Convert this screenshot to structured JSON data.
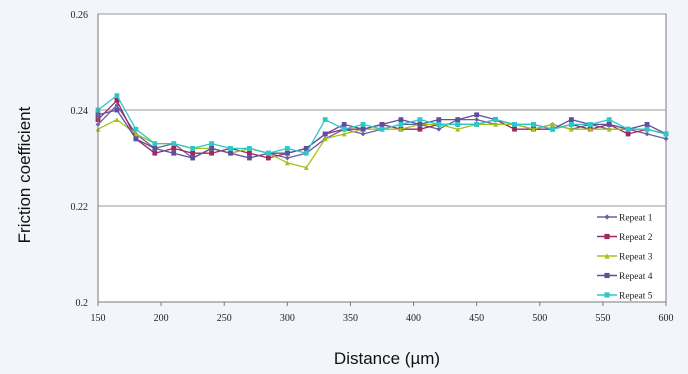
{
  "colors": {
    "page_background": "#f2f5fa",
    "plot_background": "#ffffff",
    "grid": "#9a9a9a",
    "axis": "#7a7a7a"
  },
  "chart_data": {
    "type": "line",
    "title": "",
    "xlabel": "Distance (µm)",
    "ylabel": "Friction coefficient",
    "xlim": [
      150,
      600
    ],
    "ylim": [
      0.2,
      0.26
    ],
    "xticks": [
      150,
      200,
      250,
      300,
      350,
      400,
      450,
      500,
      550,
      600
    ],
    "yticks": [
      0.2,
      0.22,
      0.24,
      0.26
    ],
    "ytick_labels": [
      "0.2",
      "0.22",
      "0.24",
      "0.26"
    ],
    "grid": "horizontal",
    "legend_position": "bottom-right",
    "series": [
      {
        "name": "Repeat 1",
        "color": "#6a5fa0",
        "marker": "diamond",
        "x": [
          150,
          165,
          180,
          195,
          210,
          225,
          240,
          255,
          270,
          285,
          300,
          315,
          330,
          345,
          360,
          375,
          390,
          405,
          420,
          435,
          450,
          465,
          480,
          495,
          510,
          525,
          540,
          555,
          570,
          585,
          600
        ],
        "y": [
          0.237,
          0.241,
          0.235,
          0.232,
          0.233,
          0.23,
          0.232,
          0.231,
          0.232,
          0.231,
          0.23,
          0.231,
          0.234,
          0.236,
          0.235,
          0.236,
          0.237,
          0.237,
          0.236,
          0.238,
          0.238,
          0.237,
          0.237,
          0.236,
          0.237,
          0.236,
          0.237,
          0.236,
          0.236,
          0.235,
          0.234
        ]
      },
      {
        "name": "Repeat 2",
        "color": "#9c2a5e",
        "marker": "square",
        "x": [
          150,
          165,
          180,
          195,
          210,
          225,
          240,
          255,
          270,
          285,
          300,
          315,
          330,
          345,
          360,
          375,
          390,
          405,
          420,
          435,
          450,
          465,
          480,
          495,
          510,
          525,
          540,
          555,
          570,
          585,
          600
        ],
        "y": [
          0.238,
          0.242,
          0.234,
          0.231,
          0.232,
          0.231,
          0.231,
          0.232,
          0.231,
          0.23,
          0.231,
          0.232,
          0.235,
          0.236,
          0.236,
          0.237,
          0.236,
          0.236,
          0.237,
          0.237,
          0.237,
          0.238,
          0.236,
          0.236,
          0.236,
          0.237,
          0.236,
          0.237,
          0.235,
          0.236,
          0.235
        ]
      },
      {
        "name": "Repeat 3",
        "color": "#a4c21a",
        "marker": "triangle",
        "x": [
          150,
          165,
          180,
          195,
          210,
          225,
          240,
          255,
          270,
          285,
          300,
          315,
          330,
          345,
          360,
          375,
          390,
          405,
          420,
          435,
          450,
          465,
          480,
          495,
          510,
          525,
          540,
          555,
          570,
          585,
          600
        ],
        "y": [
          0.236,
          0.238,
          0.235,
          0.233,
          0.233,
          0.232,
          0.232,
          0.231,
          0.232,
          0.231,
          0.229,
          0.228,
          0.234,
          0.235,
          0.236,
          0.236,
          0.236,
          0.237,
          0.237,
          0.236,
          0.237,
          0.237,
          0.237,
          0.236,
          0.237,
          0.236,
          0.236,
          0.236,
          0.236,
          0.236,
          0.235
        ]
      },
      {
        "name": "Repeat 4",
        "color": "#5e4f9e",
        "marker": "square",
        "x": [
          150,
          165,
          180,
          195,
          210,
          225,
          240,
          255,
          270,
          285,
          300,
          315,
          330,
          345,
          360,
          375,
          390,
          405,
          420,
          435,
          450,
          465,
          480,
          495,
          510,
          525,
          540,
          555,
          570,
          585,
          600
        ],
        "y": [
          0.239,
          0.24,
          0.234,
          0.232,
          0.231,
          0.23,
          0.232,
          0.231,
          0.23,
          0.231,
          0.231,
          0.232,
          0.235,
          0.237,
          0.236,
          0.237,
          0.238,
          0.237,
          0.238,
          0.238,
          0.239,
          0.238,
          0.237,
          0.237,
          0.236,
          0.238,
          0.237,
          0.237,
          0.236,
          0.237,
          0.235
        ]
      },
      {
        "name": "Repeat 5",
        "color": "#2cc9c9",
        "marker": "square",
        "x": [
          150,
          165,
          180,
          195,
          210,
          225,
          240,
          255,
          270,
          285,
          300,
          315,
          330,
          345,
          360,
          375,
          390,
          405,
          420,
          435,
          450,
          465,
          480,
          495,
          510,
          525,
          540,
          555,
          570,
          585,
          600
        ],
        "y": [
          0.24,
          0.243,
          0.236,
          0.233,
          0.233,
          0.232,
          0.233,
          0.232,
          0.232,
          0.231,
          0.232,
          0.231,
          0.238,
          0.236,
          0.237,
          0.236,
          0.237,
          0.238,
          0.237,
          0.237,
          0.237,
          0.238,
          0.237,
          0.237,
          0.236,
          0.237,
          0.237,
          0.238,
          0.236,
          0.236,
          0.235
        ]
      }
    ]
  }
}
